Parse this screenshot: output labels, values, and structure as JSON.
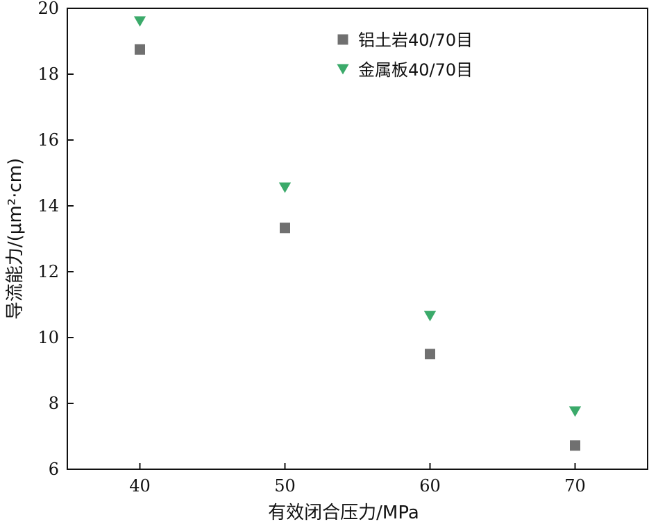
{
  "chart_data": {
    "type": "scatter",
    "title": "",
    "xlabel": "有效闭合压力/MPa",
    "ylabel": "导流能力/(μm²·cm)",
    "xlim": [
      35,
      75
    ],
    "ylim": [
      6,
      20
    ],
    "xticks": [
      40,
      50,
      60,
      70
    ],
    "yticks": [
      6,
      8,
      10,
      12,
      14,
      16,
      18,
      20
    ],
    "grid": false,
    "legend_position": "top-right",
    "series": [
      {
        "name": "铝土岩40/70目",
        "marker": "square",
        "color": "#707070",
        "x": [
          40,
          50,
          60,
          70
        ],
        "y": [
          18.75,
          13.33,
          9.5,
          6.72
        ]
      },
      {
        "name": "金属板40/70目",
        "marker": "triangle-down",
        "color": "#3BAA6A",
        "x": [
          40,
          50,
          60,
          70
        ],
        "y": [
          19.6,
          14.55,
          10.65,
          7.75
        ]
      }
    ]
  }
}
